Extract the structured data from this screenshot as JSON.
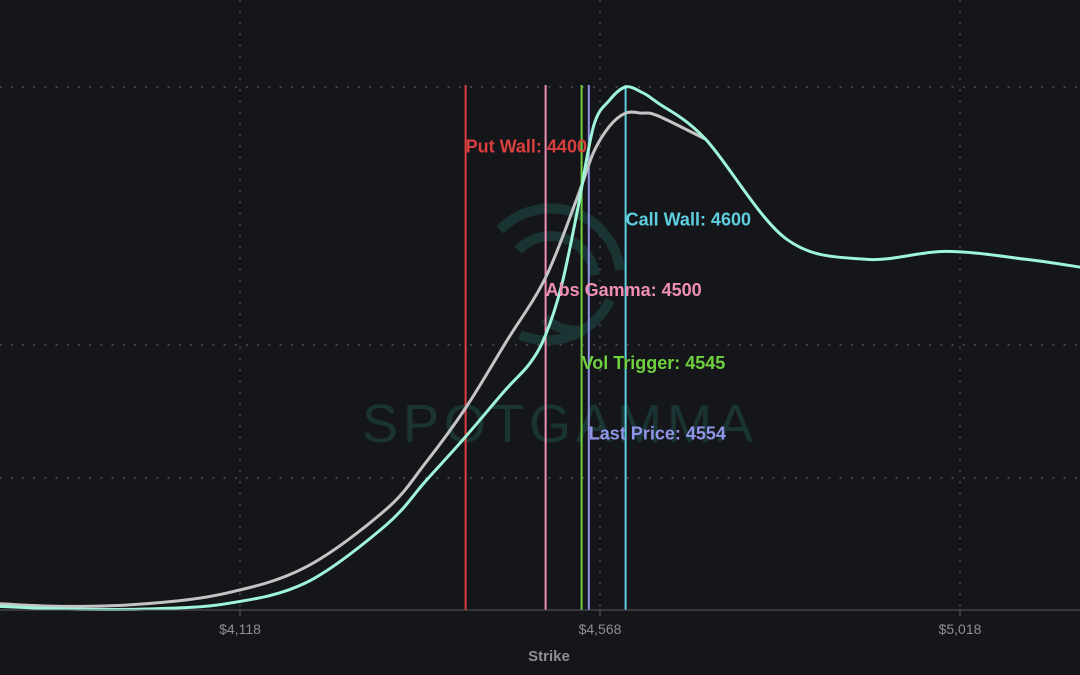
{
  "chart_data": {
    "type": "line",
    "xlabel": "Strike",
    "xlim": [
      3818,
      5168
    ],
    "ylim": [
      0,
      100
    ],
    "x_ticks": [
      4118,
      4568,
      5018
    ],
    "x_tick_labels": [
      "$4,118",
      "$4,568",
      "$5,018"
    ],
    "grid": true,
    "series": [
      {
        "color": "#9ff5d9",
        "x": [
          3818,
          3900,
          4000,
          4100,
          4200,
          4300,
          4350,
          4400,
          4450,
          4480,
          4500,
          4520,
          4540,
          4560,
          4580,
          4600,
          4620,
          4640,
          4700,
          4800,
          4900,
          5000,
          5100,
          5168
        ],
        "y": [
          0.5,
          0,
          0,
          1,
          5,
          16,
          24.5,
          33,
          42,
          47,
          52.5,
          62,
          76.5,
          92.5,
          97.5,
          100,
          99,
          97,
          90,
          71,
          67,
          68.5,
          67,
          65.5
        ]
      },
      {
        "color": "#c4c4c4",
        "x": [
          3818,
          3900,
          4000,
          4100,
          4200,
          4300,
          4350,
          4400,
          4450,
          4500,
          4540,
          4560,
          4580,
          4600,
          4620,
          4640,
          4700
        ],
        "y": [
          1,
          0.5,
          1,
          3,
          8,
          19,
          28,
          38.5,
          51,
          63.5,
          79,
          87.5,
          92.5,
          95,
          95,
          94.5,
          90
        ]
      }
    ],
    "levels": [
      {
        "name": "Put Wall",
        "label": "Put Wall: 4400",
        "value": 4400,
        "color": "#d93f3f",
        "label_y": 87.5
      },
      {
        "name": "Abs Gamma",
        "label": "Abs Gamma: 4500",
        "value": 4500,
        "color": "#f08fb5",
        "label_y": 60
      },
      {
        "name": "Vol Trigger",
        "label": "Vol Trigger: 4545",
        "value": 4545,
        "color": "#6fd13f",
        "label_y": 46
      },
      {
        "name": "Last Price",
        "label": "Last Price: 4554",
        "value": 4554,
        "color": "#8f95e8",
        "label_y": 32.5
      },
      {
        "name": "Call Wall",
        "label": "Call Wall: 4600",
        "value": 4600,
        "color": "#5ecfe0",
        "label_y": 73.5
      }
    ]
  },
  "watermark": {
    "text": "SPOTGAMMA",
    "color": "#1c3a38"
  }
}
